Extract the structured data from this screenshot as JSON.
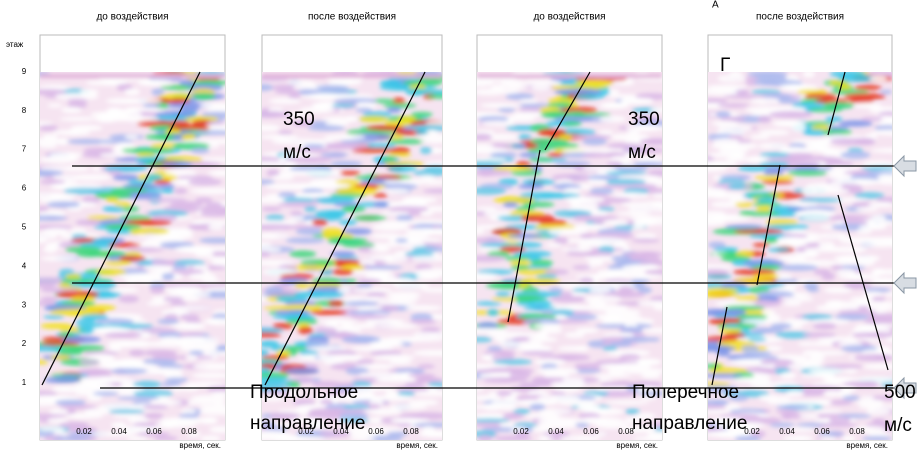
{
  "y_axis_label": "этаж",
  "floor_ticks": [
    "1",
    "2",
    "3",
    "4",
    "5",
    "6",
    "7",
    "8",
    "9"
  ],
  "panels": [
    {
      "title": "до воздействия",
      "x_ticks": [
        "0.02",
        "0.04",
        "0.06",
        "0.08"
      ],
      "x_label": "время, сек."
    },
    {
      "title": "после воздействия",
      "x_ticks": [
        "0.02",
        "0.04",
        "0.06",
        "0.08"
      ],
      "x_label": "время, сек."
    },
    {
      "title": "до воздействия",
      "x_ticks": [
        "0.02",
        "0.04",
        "0.06",
        "0.08"
      ],
      "x_label": "время, сек."
    },
    {
      "title": "после воздействия",
      "x_ticks": [
        "0.02",
        "0.04",
        "0.06",
        "0.08"
      ],
      "x_label": "время, сек."
    }
  ],
  "marker_a": "А",
  "marker_g": "Г",
  "annotations": [
    [
      "350",
      "м/с"
    ],
    [
      "350",
      "м/с"
    ],
    [
      "500",
      "м/с"
    ],
    [
      "Продольное",
      "направление"
    ],
    [
      "Поперечное",
      "направление"
    ]
  ]
}
